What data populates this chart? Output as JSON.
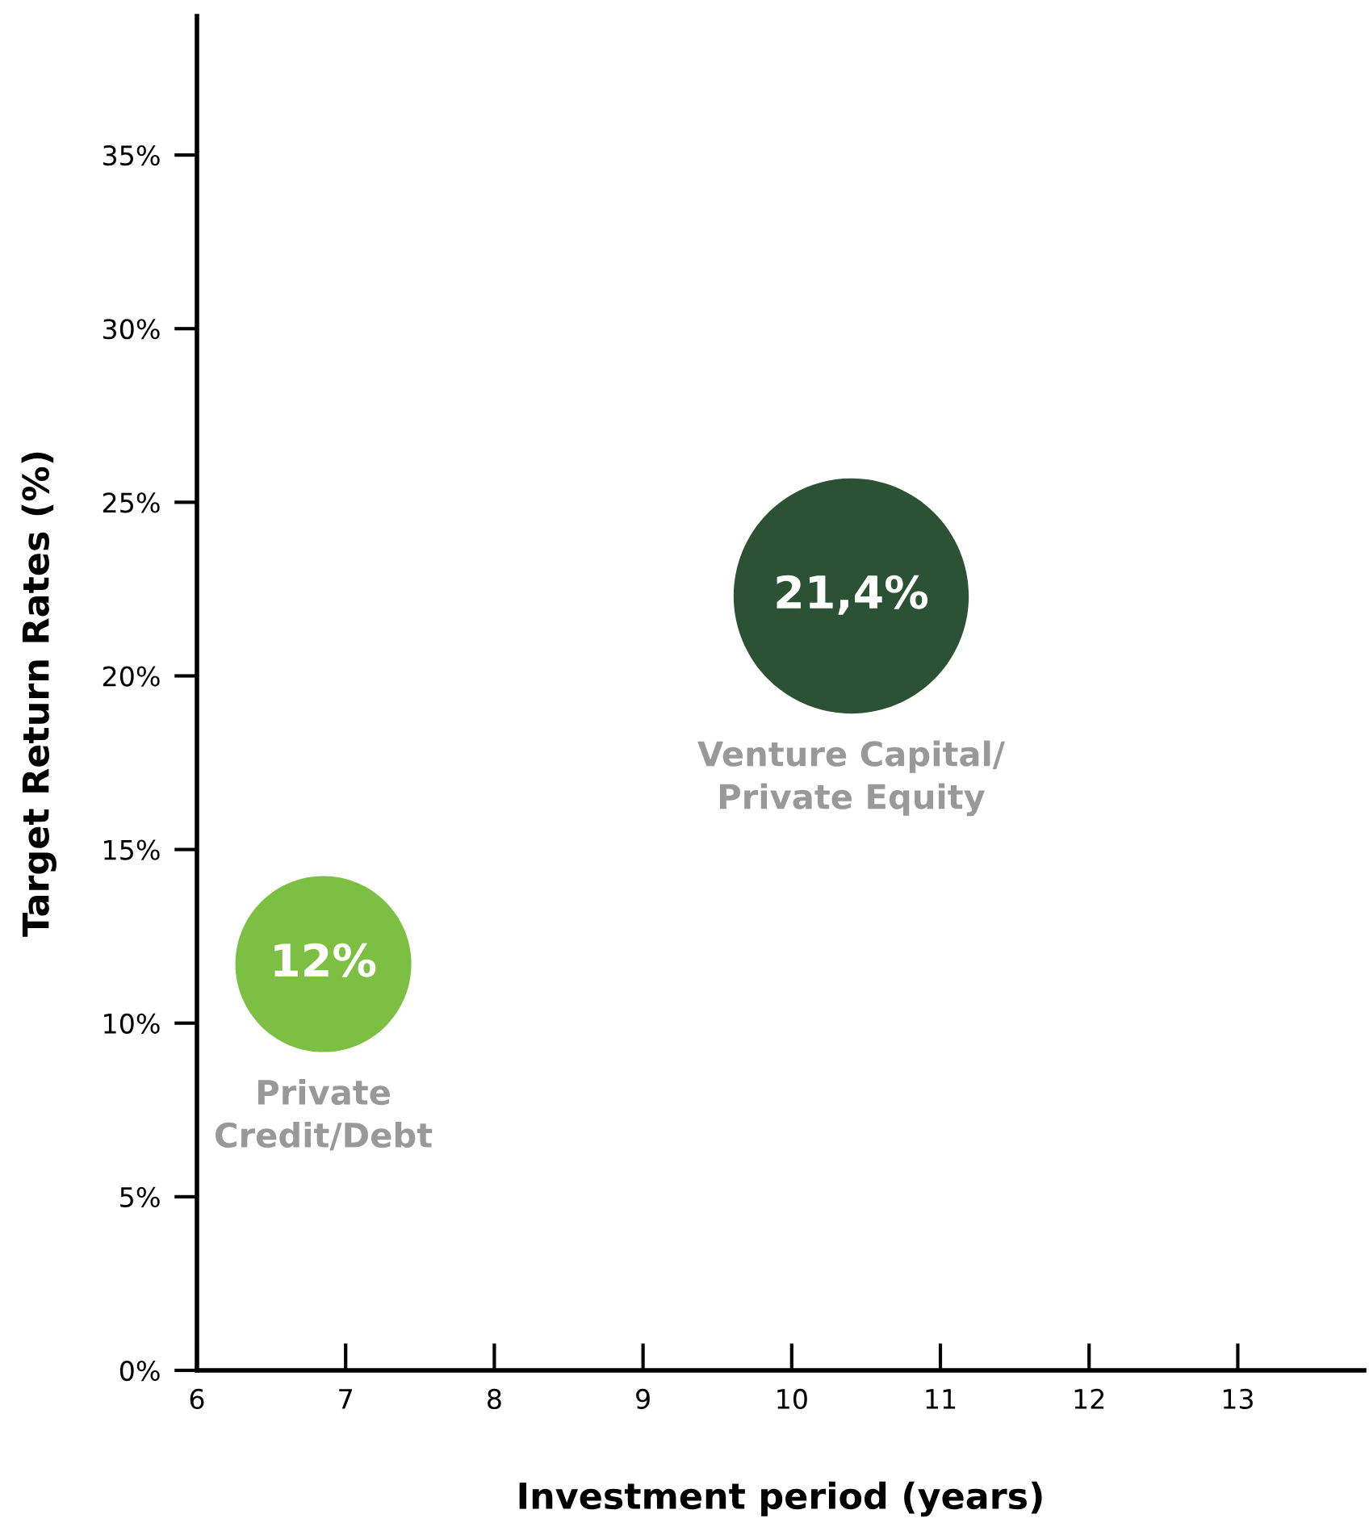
{
  "chart_data": {
    "type": "bubble",
    "xlabel": "Investment period (years)",
    "ylabel": "Target Return Rates (%)",
    "xlim": [
      6,
      13.85
    ],
    "xticks": [
      6,
      7,
      8,
      9,
      10,
      11,
      12,
      13
    ],
    "ylim": [
      0,
      39
    ],
    "yticks": [
      {
        "value": 0,
        "label": "0%"
      },
      {
        "value": 5,
        "label": "5%"
      },
      {
        "value": 10,
        "label": "10%"
      },
      {
        "value": 15,
        "label": "15%"
      },
      {
        "value": 20,
        "label": "20%"
      },
      {
        "value": 25,
        "label": "25%"
      },
      {
        "value": 30,
        "label": "30%"
      },
      {
        "value": 35,
        "label": "35%"
      }
    ],
    "grid": false,
    "legend": false,
    "annotations": [
      {
        "text": "12%",
        "x": 6.85,
        "y": 11.7
      },
      {
        "text": "21,4%",
        "x": 10.4,
        "y": 22.3
      }
    ],
    "series": [
      {
        "name": "Private\nCredit/Debt",
        "color": "#7dbf43",
        "x": [
          6.85
        ],
        "values": [
          11.7
        ],
        "sizes": [
          0.56
        ]
      },
      {
        "name": "Venture Capital/\nPrivate Equity",
        "color": "#2b5234",
        "x": [
          10.4
        ],
        "values": [
          22.3
        ],
        "sizes": [
          1
        ]
      }
    ]
  }
}
